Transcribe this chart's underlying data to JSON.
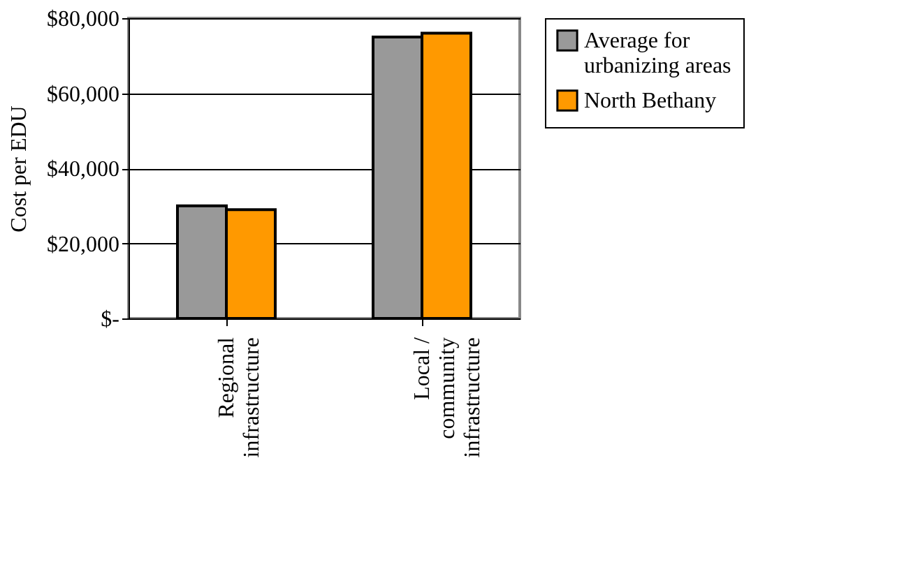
{
  "chart_data": {
    "type": "bar",
    "ylabel": "Cost per EDU",
    "categories": [
      "Regional\ninfrastructure",
      "Local /\ncommunity\ninfrastructure"
    ],
    "series": [
      {
        "name": "Average for\nurbanizing areas",
        "color": "#999999",
        "values": [
          30000,
          75000
        ]
      },
      {
        "name": "North Bethany",
        "color": "#ff9900",
        "values": [
          29000,
          76000
        ]
      }
    ],
    "ylim": [
      0,
      80000
    ],
    "yticks": [
      {
        "value": 0,
        "label": "$-"
      },
      {
        "value": 20000,
        "label": "$20,000"
      },
      {
        "value": 40000,
        "label": "$40,000"
      },
      {
        "value": 60000,
        "label": "$60,000"
      },
      {
        "value": 80000,
        "label": "$80,000"
      }
    ],
    "grid": "y",
    "legend": "right"
  }
}
